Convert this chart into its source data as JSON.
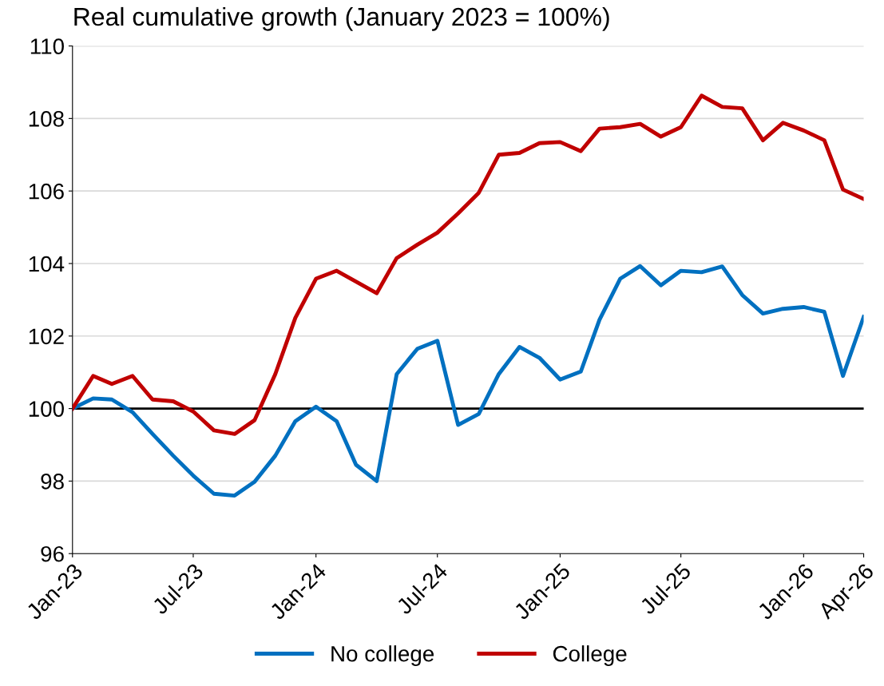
{
  "chart_data": {
    "type": "line",
    "title": "Real cumulative growth (January 2023 = 100%)",
    "x": [
      "2023-01",
      "2023-02",
      "2023-03",
      "2023-04",
      "2023-05",
      "2023-06",
      "2023-07",
      "2023-08",
      "2023-09",
      "2023-10",
      "2023-11",
      "2023-12",
      "2024-01",
      "2024-02",
      "2024-03",
      "2024-04",
      "2024-05",
      "2024-06",
      "2024-07",
      "2024-08",
      "2024-09",
      "2024-10",
      "2024-11",
      "2024-12",
      "2025-01",
      "2025-02",
      "2025-03",
      "2025-04",
      "2025-05",
      "2025-06",
      "2025-07",
      "2025-08",
      "2025-09",
      "2025-10",
      "2025-11",
      "2025-12",
      "2026-01",
      "2026-02",
      "2026-03",
      "2026-04"
    ],
    "series": [
      {
        "name": "No college",
        "color": "#0070c0",
        "values": [
          100,
          100.28,
          100.25,
          99.9,
          99.3,
          98.7,
          98.15,
          97.65,
          97.6,
          97.98,
          98.7,
          99.65,
          100.05,
          99.65,
          98.45,
          98.0,
          100.95,
          101.65,
          101.87,
          99.55,
          99.85,
          100.95,
          101.7,
          101.4,
          100.8,
          101.02,
          102.45,
          103.58,
          103.93,
          103.4,
          103.8,
          103.76,
          103.92,
          103.13,
          102.62,
          102.75,
          102.8,
          102.67,
          100.9,
          102.53
        ]
      },
      {
        "name": "College",
        "color": "#c00000",
        "values": [
          100,
          100.9,
          100.68,
          100.9,
          100.25,
          100.2,
          99.92,
          99.4,
          99.3,
          99.68,
          100.95,
          102.5,
          103.58,
          103.8,
          103.5,
          103.18,
          104.15,
          104.52,
          104.85,
          105.38,
          105.95,
          107.0,
          107.05,
          107.32,
          107.35,
          107.1,
          107.72,
          107.76,
          107.85,
          107.5,
          107.76,
          108.63,
          108.32,
          108.28,
          107.4,
          107.88,
          107.67,
          107.4,
          106.04,
          105.78
        ]
      }
    ],
    "xlim": [
      "2023-01",
      "2026-04"
    ],
    "xticks": [
      {
        "value": "2023-01",
        "label": "Jan-23"
      },
      {
        "value": "2023-07",
        "label": "Jul-23"
      },
      {
        "value": "2024-01",
        "label": "Jan-24"
      },
      {
        "value": "2024-07",
        "label": "Jul-24"
      },
      {
        "value": "2025-01",
        "label": "Jan-25"
      },
      {
        "value": "2025-07",
        "label": "Jul-25"
      },
      {
        "value": "2026-01",
        "label": "Jan-26"
      },
      {
        "value": "2026-04",
        "label": "Apr-26"
      }
    ],
    "ylim": [
      96,
      110
    ],
    "yticks": [
      96,
      98,
      100,
      102,
      104,
      106,
      108,
      110
    ],
    "ref_lines": [
      {
        "axis": "y",
        "value": 100,
        "color": "#000000"
      }
    ],
    "grid": "y",
    "legend": "bottom",
    "marker": "none",
    "line_style": "solid"
  }
}
